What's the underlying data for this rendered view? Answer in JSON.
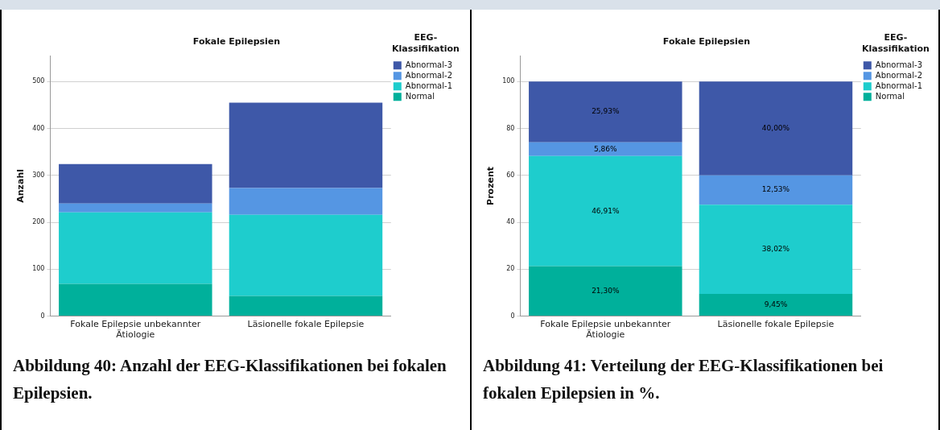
{
  "chart_data": [
    {
      "type": "bar",
      "title": "Fokale Epilepsien",
      "ylabel": "Anzahl",
      "legend_title": "EEG-Klassifikation",
      "stacked": true,
      "categories": [
        "Fokale Epilepsie unbekannter Ätiologie",
        "Läsionelle fokale Epilepsie"
      ],
      "series": [
        {
          "name": "Normal",
          "color": "#00b09b",
          "values": [
            69,
            43
          ]
        },
        {
          "name": "Abnormal-1",
          "color": "#1ecdcd",
          "values": [
            152,
            173
          ]
        },
        {
          "name": "Abnormal-2",
          "color": "#5596e3",
          "values": [
            19,
            57
          ]
        },
        {
          "name": "Abnormal-3",
          "color": "#3e58a8",
          "values": [
            84,
            182
          ]
        }
      ],
      "ylim": [
        0,
        555
      ],
      "yticks": [
        0,
        100,
        200,
        300,
        400,
        500
      ],
      "grid": "y",
      "legend": "top right",
      "annotations": [
        "Abbildung 40: Anzahl der EEG-Klassifikationen bei fokalen Epilepsien."
      ]
    },
    {
      "type": "bar",
      "title": "Fokale Epilepsien",
      "ylabel": "Prozent",
      "legend_title": "EEG-Klassifikation",
      "stacked": true,
      "categories": [
        "Fokale Epilepsie unbekannter Ätiologie",
        "Läsionelle fokale Epilepsie"
      ],
      "series": [
        {
          "name": "Normal",
          "color": "#00b09b",
          "values": [
            21.3,
            9.45
          ],
          "value_labels": [
            "21,30%",
            "9,45%"
          ]
        },
        {
          "name": "Abnormal-1",
          "color": "#1ecdcd",
          "values": [
            46.91,
            38.02
          ],
          "value_labels": [
            "46,91%",
            "38,02%"
          ]
        },
        {
          "name": "Abnormal-2",
          "color": "#5596e3",
          "values": [
            5.86,
            12.53
          ],
          "value_labels": [
            "5,86%",
            "12,53%"
          ]
        },
        {
          "name": "Abnormal-3",
          "color": "#3e58a8",
          "values": [
            25.93,
            40.0
          ],
          "value_labels": [
            "25,93%",
            "40,00%"
          ]
        }
      ],
      "ylim": [
        0,
        111
      ],
      "yticks": [
        0,
        20,
        40,
        60,
        80,
        100
      ],
      "grid": "y",
      "legend": "top right",
      "annotations": [
        "Abbildung 41: Verteilung der EEG-Klassifikationen bei fokalen Epilepsien in %."
      ]
    }
  ]
}
